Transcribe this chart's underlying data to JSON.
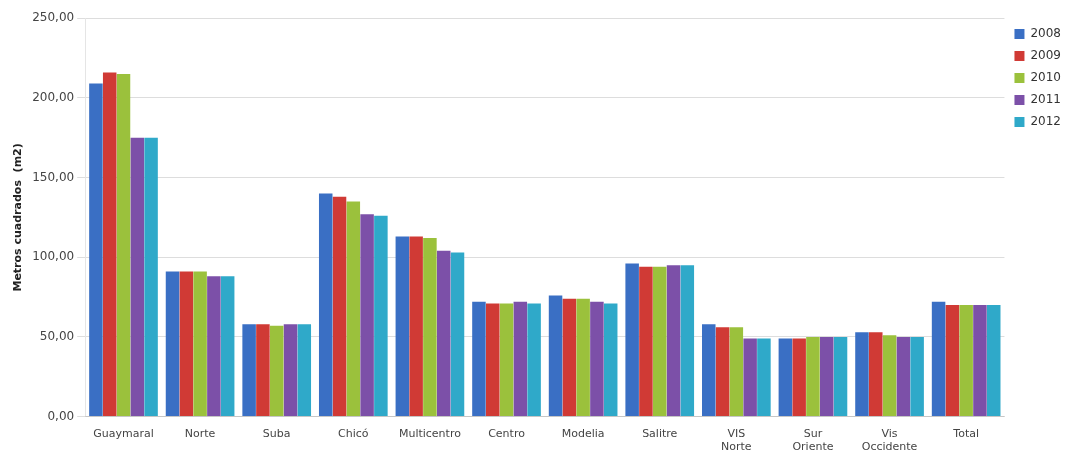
{
  "chart_data": {
    "type": "bar",
    "ylabel": "Metros cuadrados  (m2)",
    "categories": [
      "Guaymaral",
      "Norte",
      "Suba",
      "Chicó",
      "Multicentro",
      "Centro",
      "Modelia",
      "Salitre",
      "VIS Norte",
      "Sur Oriente",
      "Vis Occidente",
      "Total"
    ],
    "series": [
      {
        "name": "2008",
        "color": "#3a6fc4",
        "values": [
          209,
          91,
          58,
          140,
          113,
          72,
          76,
          96,
          58,
          49,
          53,
          72
        ]
      },
      {
        "name": "2009",
        "color": "#d03a35",
        "values": [
          216,
          91,
          58,
          138,
          113,
          71,
          74,
          94,
          56,
          49,
          53,
          70
        ]
      },
      {
        "name": "2010",
        "color": "#9bc13c",
        "values": [
          215,
          91,
          57,
          135,
          112,
          71,
          74,
          94,
          56,
          50,
          51,
          70
        ]
      },
      {
        "name": "2011",
        "color": "#7c50a8",
        "values": [
          175,
          88,
          58,
          127,
          104,
          72,
          72,
          95,
          49,
          50,
          50,
          70
        ]
      },
      {
        "name": "2012",
        "color": "#2fa9c9",
        "values": [
          175,
          88,
          58,
          126,
          103,
          71,
          71,
          95,
          49,
          50,
          50,
          70
        ]
      }
    ],
    "ylim": [
      0,
      250
    ],
    "yticks": [
      {
        "value": 0,
        "label": "0,00"
      },
      {
        "value": 50,
        "label": "50,00"
      },
      {
        "value": 100,
        "label": "100,00"
      },
      {
        "value": 150,
        "label": "150,00"
      },
      {
        "value": 200,
        "label": "200,00"
      },
      {
        "value": 250,
        "label": "250,00"
      }
    ],
    "grid": "y",
    "legend": "top right"
  }
}
